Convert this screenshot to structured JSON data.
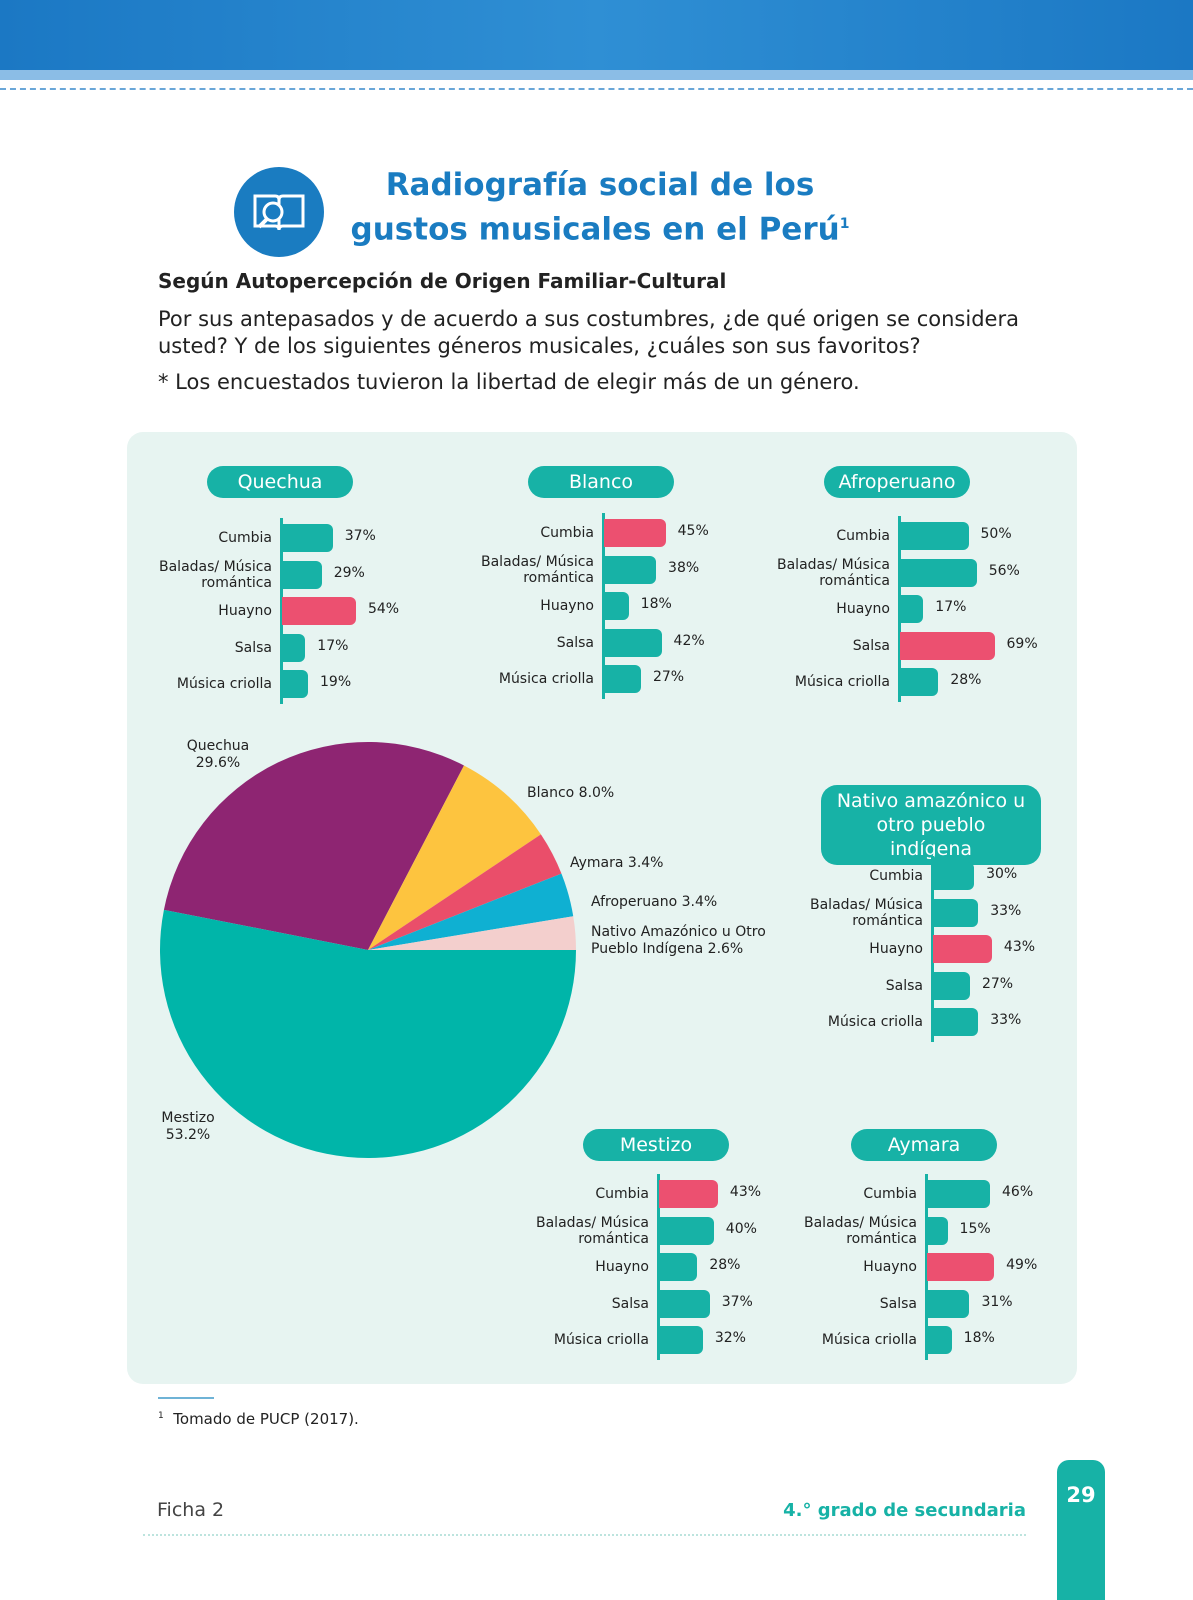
{
  "header": {
    "title": "Radiografía social de los gustos musicales en el Perú",
    "title_note": "1",
    "section": "Según Autopercepción de Origen Familiar-Cultural",
    "question": "Por sus antepasados y de acuerdo a sus costumbres, ¿de qué origen se considera usted? Y de los siguientes géneros musicales, ¿cuáles son sus favoritos?",
    "note": "* Los encuestados tuvieron la libertad de elegir más de un género."
  },
  "chart_data": [
    {
      "type": "pie",
      "categories": [
        "Quechua",
        "Blanco",
        "Aymara",
        "Afroperuano",
        "Nativo Amazónico u Otro Pueblo Indígena",
        "Mestizo"
      ],
      "values": [
        29.6,
        8.0,
        3.4,
        3.4,
        2.6,
        53.2
      ],
      "value_labels": [
        "29.6%",
        "8.0%",
        "3.4%",
        "3.4%",
        "2.6%",
        "53.2%"
      ],
      "colors": [
        "#8e2572",
        "#fdc43f",
        "#ea4e6a",
        "#0fb0d2",
        "#f3cfcd",
        "#00b5a9"
      ]
    },
    {
      "type": "bar",
      "title": "Quechua",
      "categories": [
        "Cumbia",
        "Baladas/ Música romántica",
        "Huayno",
        "Salsa",
        "Música criolla"
      ],
      "values": [
        37,
        29,
        54,
        17,
        19
      ],
      "value_labels": [
        "37%",
        "29%",
        "54%",
        "17%",
        "19%"
      ],
      "colors": [
        "#17b2a6",
        "#17b2a6",
        "#ec5070",
        "#17b2a6",
        "#17b2a6"
      ]
    },
    {
      "type": "bar",
      "title": "Blanco",
      "categories": [
        "Cumbia",
        "Baladas/ Música romántica",
        "Huayno",
        "Salsa",
        "Música criolla"
      ],
      "values": [
        45,
        38,
        18,
        42,
        27
      ],
      "value_labels": [
        "45%",
        "38%",
        "18%",
        "42%",
        "27%"
      ],
      "colors": [
        "#ec5070",
        "#17b2a6",
        "#17b2a6",
        "#17b2a6",
        "#17b2a6"
      ]
    },
    {
      "type": "bar",
      "title": "Afroperuano",
      "categories": [
        "Cumbia",
        "Baladas/ Música romántica",
        "Huayno",
        "Salsa",
        "Música criolla"
      ],
      "values": [
        50,
        56,
        17,
        69,
        28
      ],
      "value_labels": [
        "50%",
        "56%",
        "17%",
        "69%",
        "28%"
      ],
      "colors": [
        "#17b2a6",
        "#17b2a6",
        "#17b2a6",
        "#ec5070",
        "#17b2a6"
      ]
    },
    {
      "type": "bar",
      "title": "Nativo amazónico u otro pueblo indígena",
      "categories": [
        "Cumbia",
        "Baladas/ Música romántica",
        "Huayno",
        "Salsa",
        "Música criolla"
      ],
      "values": [
        30,
        33,
        43,
        27,
        33
      ],
      "value_labels": [
        "30%",
        "33%",
        "43%",
        "27%",
        "33%"
      ],
      "colors": [
        "#17b2a6",
        "#17b2a6",
        "#ec5070",
        "#17b2a6",
        "#17b2a6"
      ]
    },
    {
      "type": "bar",
      "title": "Mestizo",
      "categories": [
        "Cumbia",
        "Baladas/ Música romántica",
        "Huayno",
        "Salsa",
        "Música criolla"
      ],
      "values": [
        43,
        40,
        28,
        37,
        32
      ],
      "value_labels": [
        "43%",
        "40%",
        "28%",
        "37%",
        "32%"
      ],
      "colors": [
        "#ec5070",
        "#17b2a6",
        "#17b2a6",
        "#17b2a6",
        "#17b2a6"
      ]
    },
    {
      "type": "bar",
      "title": "Aymara",
      "categories": [
        "Cumbia",
        "Baladas/ Música romántica",
        "Huayno",
        "Salsa",
        "Música criolla"
      ],
      "values": [
        46,
        15,
        49,
        31,
        18
      ],
      "value_labels": [
        "46%",
        "15%",
        "49%",
        "31%",
        "18%"
      ],
      "colors": [
        "#17b2a6",
        "#17b2a6",
        "#ec5070",
        "#17b2a6",
        "#17b2a6"
      ]
    }
  ],
  "footnote": {
    "marker": "1",
    "text": "Tomado de PUCP (2017)."
  },
  "footer": {
    "left": "Ficha 2",
    "right": "4.° grado de secundaria",
    "page": "29"
  }
}
